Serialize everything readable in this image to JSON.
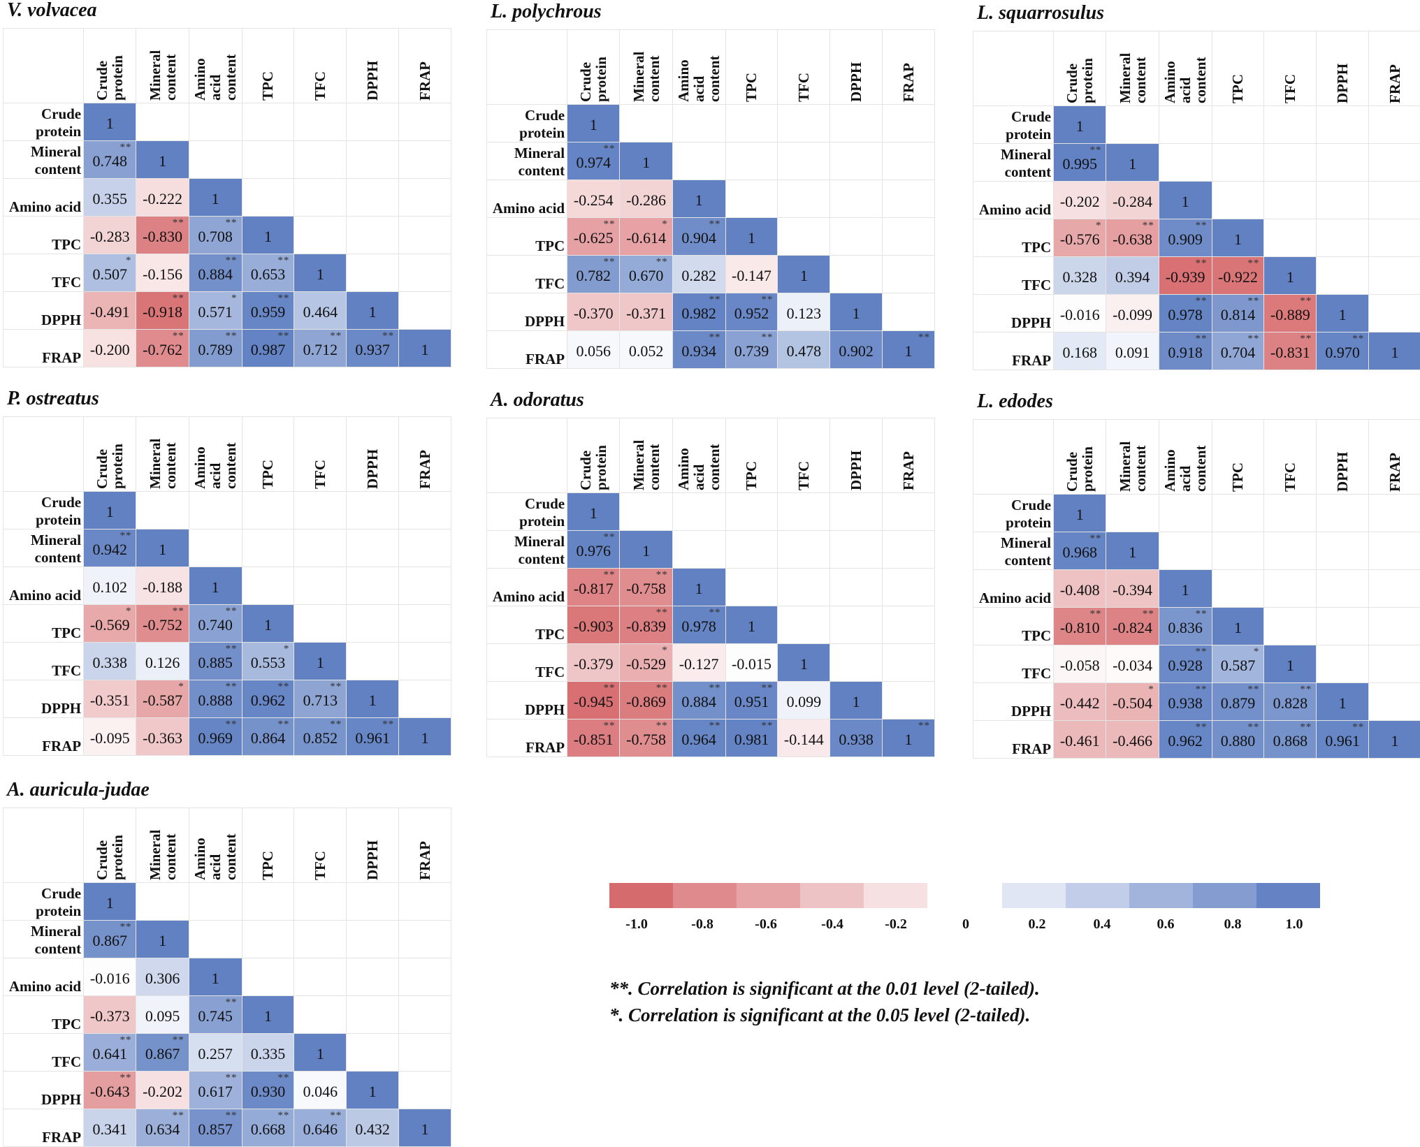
{
  "chart_data": {
    "type": "heatmap",
    "columns": [
      "Crude protein",
      "Mineral content",
      "Amino acid content",
      "TPC",
      "TFC",
      "DPPH",
      "FRAP"
    ],
    "rows": [
      "Crude protein",
      "Mineral content",
      "Amino acid",
      "TPC",
      "TFC",
      "DPPH",
      "FRAP"
    ],
    "colors": {
      "negative": "#d6686b",
      "positive": "#6181c3",
      "zero": "#ffffff"
    },
    "value_range": [
      -1,
      1
    ],
    "panels": [
      {
        "title": "V. volvacea",
        "values": [
          [
            "1"
          ],
          [
            "0.748",
            "1"
          ],
          [
            "0.355",
            "-0.222",
            "1"
          ],
          [
            "-0.283",
            "-0.830",
            "0.708",
            "1"
          ],
          [
            "0.507",
            "-0.156",
            "0.884",
            "0.653",
            "1"
          ],
          [
            "-0.491",
            "-0.918",
            "0.571",
            "0.959",
            "0.464",
            "1"
          ],
          [
            "-0.200",
            "-0.762",
            "0.789",
            "0.987",
            "0.712",
            "0.937",
            "1"
          ]
        ],
        "sig": [
          [
            ""
          ],
          [
            "**",
            ""
          ],
          [
            "",
            "",
            ""
          ],
          [
            "",
            "**",
            "**",
            ""
          ],
          [
            "*",
            "",
            "**",
            "**",
            ""
          ],
          [
            "",
            "**",
            "*",
            "**",
            "",
            ""
          ],
          [
            "",
            "**",
            "**",
            "**",
            "**",
            "**",
            ""
          ]
        ]
      },
      {
        "title": "L. polychrous",
        "values": [
          [
            "1"
          ],
          [
            "0.974",
            "1"
          ],
          [
            "-0.254",
            "-0.286",
            "1"
          ],
          [
            "-0.625",
            "-0.614",
            "0.904",
            "1"
          ],
          [
            "0.782",
            "0.670",
            "0.282",
            "-0.147",
            "1"
          ],
          [
            "-0.370",
            "-0.371",
            "0.982",
            "0.952",
            "0.123",
            "1"
          ],
          [
            "0.056",
            "0.052",
            "0.934",
            "0.739",
            "0.478",
            "0.902",
            "1"
          ]
        ],
        "sig": [
          [
            ""
          ],
          [
            "**",
            ""
          ],
          [
            "",
            "",
            ""
          ],
          [
            "**",
            "*",
            "**",
            ""
          ],
          [
            "**",
            "**",
            "",
            "",
            ""
          ],
          [
            "",
            "",
            "**",
            "**",
            "",
            ""
          ],
          [
            "",
            "",
            "**",
            "**",
            "",
            "",
            "**"
          ]
        ]
      },
      {
        "title": "L. squarrosulus",
        "values": [
          [
            "1"
          ],
          [
            "0.995",
            "1"
          ],
          [
            "-0.202",
            "-0.284",
            "1"
          ],
          [
            "-0.576",
            "-0.638",
            "0.909",
            "1"
          ],
          [
            "0.328",
            "0.394",
            "-0.939",
            "-0.922",
            "1"
          ],
          [
            "-0.016",
            "-0.099",
            "0.978",
            "0.814",
            "-0.889",
            "1"
          ],
          [
            "0.168",
            "0.091",
            "0.918",
            "0.704",
            "-0.831",
            "0.970",
            "1"
          ]
        ],
        "sig": [
          [
            ""
          ],
          [
            "**",
            ""
          ],
          [
            "",
            "",
            ""
          ],
          [
            "*",
            "**",
            "**",
            ""
          ],
          [
            "",
            "",
            "**",
            "**",
            ""
          ],
          [
            "",
            "",
            "**",
            "**",
            "**",
            ""
          ],
          [
            "",
            "",
            "**",
            "**",
            "**",
            "**",
            ""
          ]
        ]
      },
      {
        "title": "P. ostreatus",
        "values": [
          [
            "1"
          ],
          [
            "0.942",
            "1"
          ],
          [
            "0.102",
            "-0.188",
            "1"
          ],
          [
            "-0.569",
            "-0.752",
            "0.740",
            "1"
          ],
          [
            "0.338",
            "0.126",
            "0.885",
            "0.553",
            "1"
          ],
          [
            "-0.351",
            "-0.587",
            "0.888",
            "0.962",
            "0.713",
            "1"
          ],
          [
            "-0.095",
            "-0.363",
            "0.969",
            "0.864",
            "0.852",
            "0.961",
            "1"
          ]
        ],
        "sig": [
          [
            ""
          ],
          [
            "**",
            ""
          ],
          [
            "",
            "",
            ""
          ],
          [
            "*",
            "**",
            "**",
            ""
          ],
          [
            "",
            "",
            "**",
            "*",
            ""
          ],
          [
            "",
            "*",
            "**",
            "**",
            "**",
            ""
          ],
          [
            "",
            "",
            "**",
            "**",
            "**",
            "**",
            ""
          ]
        ]
      },
      {
        "title": "A. odoratus",
        "values": [
          [
            "1"
          ],
          [
            "0.976",
            "1"
          ],
          [
            "-0.817",
            "-0.758",
            "1"
          ],
          [
            "-0.903",
            "-0.839",
            "0.978",
            "1"
          ],
          [
            "-0.379",
            "-0.529",
            "-0.127",
            "-0.015",
            "1"
          ],
          [
            "-0.945",
            "-0.869",
            "0.884",
            "0.951",
            "0.099",
            "1"
          ],
          [
            "-0.851",
            "-0.758",
            "0.964",
            "0.981",
            "-0.144",
            "0.938",
            "1"
          ]
        ],
        "sig": [
          [
            ""
          ],
          [
            "**",
            ""
          ],
          [
            "**",
            "**",
            ""
          ],
          [
            "",
            "**",
            "**",
            ""
          ],
          [
            "",
            "*",
            "",
            "",
            ""
          ],
          [
            "**",
            "**",
            "**",
            "**",
            "",
            ""
          ],
          [
            "**",
            "**",
            "**",
            "**",
            "",
            "",
            "**"
          ]
        ]
      },
      {
        "title": "L. edodes",
        "values": [
          [
            "1"
          ],
          [
            "0.968",
            "1"
          ],
          [
            "-0.408",
            "-0.394",
            "1"
          ],
          [
            "-0.810",
            "-0.824",
            "0.836",
            "1"
          ],
          [
            "-0.058",
            "-0.034",
            "0.928",
            "0.587",
            "1"
          ],
          [
            "-0.442",
            "-0.504",
            "0.938",
            "0.879",
            "0.828",
            "1"
          ],
          [
            "-0.461",
            "-0.466",
            "0.962",
            "0.880",
            "0.868",
            "0.961",
            "1"
          ]
        ],
        "sig": [
          [
            ""
          ],
          [
            "**",
            ""
          ],
          [
            "",
            "",
            ""
          ],
          [
            "**",
            "**",
            "**",
            ""
          ],
          [
            "",
            "",
            "**",
            "*",
            ""
          ],
          [
            "",
            "*",
            "**",
            "**",
            "**",
            ""
          ],
          [
            "",
            "",
            "**",
            "**",
            "**",
            "**",
            ""
          ]
        ]
      },
      {
        "title": "A. auricula-judae",
        "values": [
          [
            "1"
          ],
          [
            "0.867",
            "1"
          ],
          [
            "-0.016",
            "0.306",
            "1"
          ],
          [
            "-0.373",
            "0.095",
            "0.745",
            "1"
          ],
          [
            "0.641",
            "0.867",
            "0.257",
            "0.335",
            "1"
          ],
          [
            "-0.643",
            "-0.202",
            "0.617",
            "0.930",
            "0.046",
            "1"
          ],
          [
            "0.341",
            "0.634",
            "0.857",
            "0.668",
            "0.646",
            "0.432",
            "1"
          ]
        ],
        "sig": [
          [
            ""
          ],
          [
            "**",
            ""
          ],
          [
            "",
            "",
            ""
          ],
          [
            "",
            "",
            "**",
            ""
          ],
          [
            "**",
            "**",
            "",
            "",
            ""
          ],
          [
            "**",
            "",
            "**",
            "**",
            "",
            ""
          ],
          [
            "",
            "**",
            "**",
            "**",
            "**",
            "",
            ""
          ]
        ]
      }
    ],
    "legend": {
      "labels": [
        "-1.0",
        "-0.8",
        "-0.6",
        "-0.4",
        "-0.2",
        "0",
        "0.2",
        "0.4",
        "0.6",
        "0.8",
        "1.0"
      ],
      "negative_colors": [
        "#d66b6e",
        "#df8a8d",
        "#e6a4a6",
        "#eec3c5",
        "#f6e0e1"
      ],
      "positive_colors": [
        "#e0e6f3",
        "#c2cee9",
        "#a3b4dc",
        "#849cd0",
        "#6582c4"
      ]
    },
    "footnotes": [
      "**. Correlation is significant at the 0.01 level (2-tailed).",
      "*. Correlation is significant at the 0.05 level (2-tailed)."
    ]
  }
}
